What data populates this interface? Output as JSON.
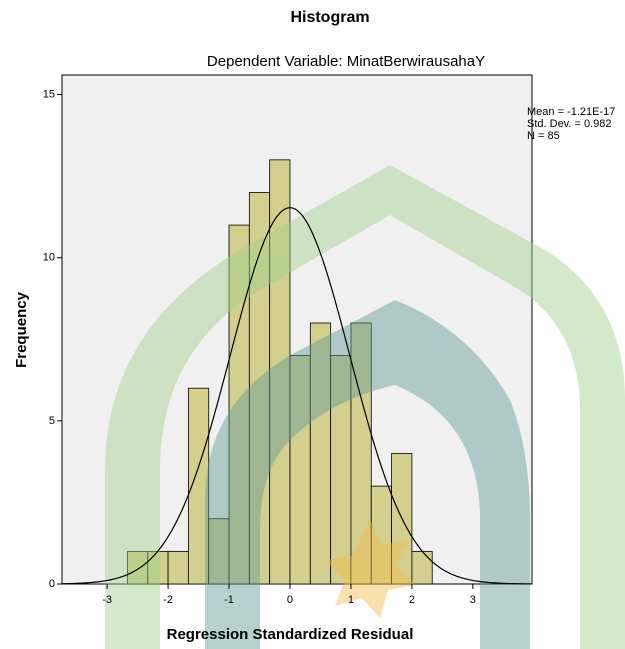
{
  "chart_data": {
    "type": "histogram",
    "title": "Histogram",
    "subtitle": "Dependent Variable: MinatBerwirausahaY",
    "x_label": "Regression Standardized Residual",
    "y_label": "Frequency",
    "bins": [
      -2.667,
      -2.333,
      -2,
      -1.667,
      -1.333,
      -1,
      -0.667,
      -0.333,
      0,
      0.333,
      0.667,
      1,
      1.333,
      1.667,
      2,
      2.333
    ],
    "values": [
      1,
      1,
      1,
      6,
      2,
      11,
      12,
      13,
      7,
      8,
      7,
      8,
      3,
      4,
      1
    ],
    "color": "#d3cf8f",
    "xlim": [
      -3.74,
      3.97
    ],
    "xticks": [
      -3,
      -2,
      -1,
      0,
      1,
      2,
      3
    ],
    "ylim": [
      0,
      15.6
    ],
    "yticks": [
      0,
      5,
      10,
      15
    ],
    "stats": {
      "mean": {
        "value": -1.21e-17,
        "label": "Mean = -1.21E-17"
      },
      "std": {
        "value": 0.982,
        "label": "Std. Dev. = 0.982"
      },
      "n": {
        "value": 85,
        "label": "N = 85"
      }
    }
  }
}
